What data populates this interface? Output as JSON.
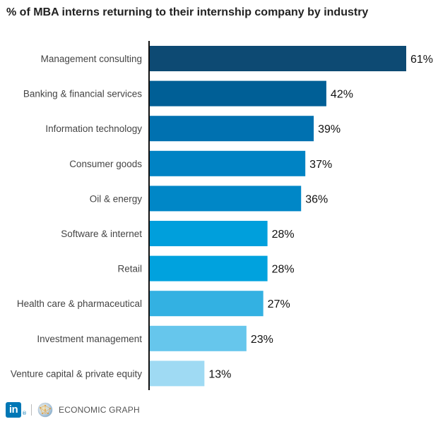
{
  "chart_data": {
    "type": "bar",
    "orientation": "horizontal",
    "title": "% of MBA interns returning to their internship company by industry",
    "categories": [
      "Management consulting",
      "Banking & financial services",
      "Information technology",
      "Consumer goods",
      "Oil & energy",
      "Software & internet",
      "Retail",
      "Health care & pharmaceutical",
      "Investment management",
      "Venture capital & private equity"
    ],
    "values": [
      61,
      42,
      39,
      37,
      36,
      28,
      28,
      27,
      23,
      13
    ],
    "value_labels": [
      "61%",
      "42%",
      "39%",
      "37%",
      "36%",
      "28%",
      "28%",
      "27%",
      "23%",
      "13%"
    ],
    "colors": [
      "#0d4a73",
      "#005f96",
      "#0071b0",
      "#0083c4",
      "#0087c7",
      "#009fdc",
      "#00a2de",
      "#33b1e2",
      "#66c6ec",
      "#9fdaf3"
    ],
    "xlim": [
      0,
      61
    ],
    "grid": false,
    "legend": "none"
  },
  "footer": {
    "linkedin_logo_text": "in",
    "registered_mark": "®",
    "brand_label": "ECONOMIC GRAPH",
    "logo_icon": "linkedin-logo-icon",
    "globe_icon": "economic-graph-globe-icon"
  }
}
